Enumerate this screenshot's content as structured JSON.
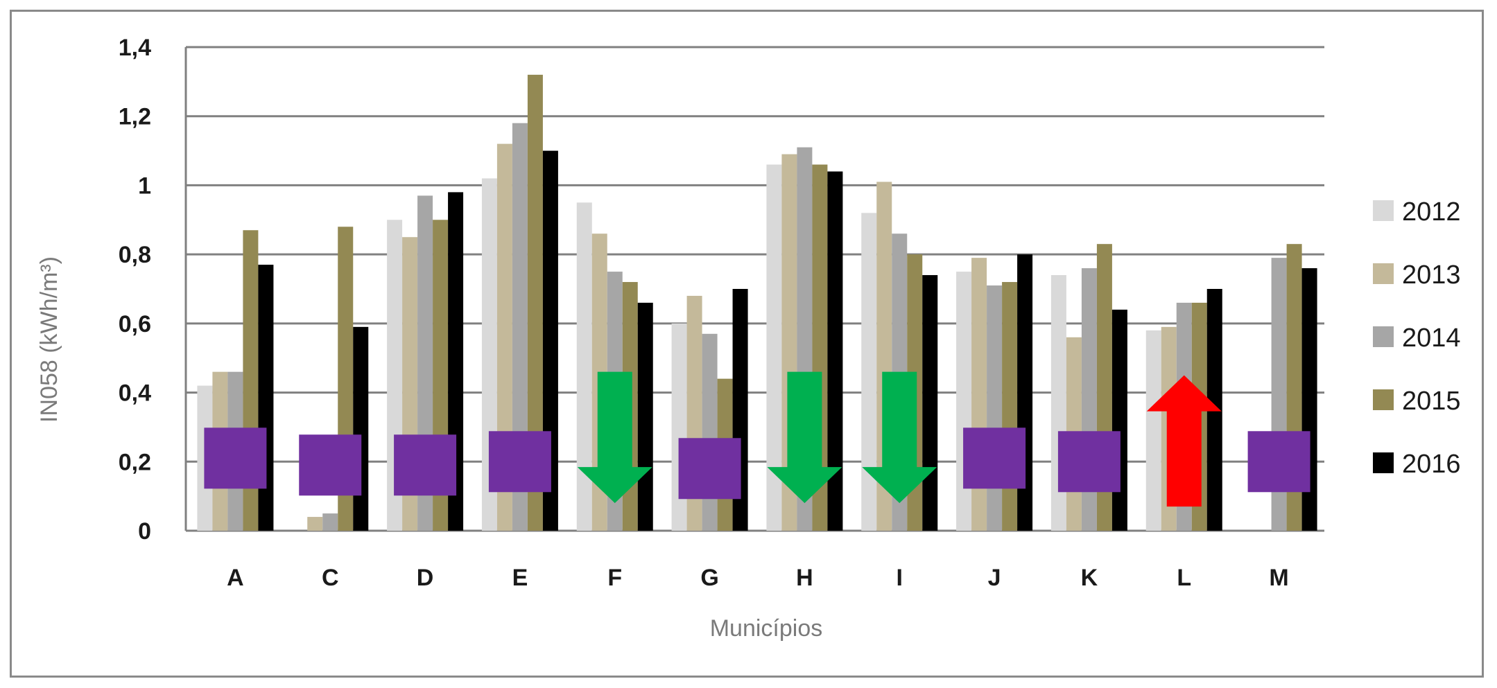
{
  "chart_data": {
    "type": "bar",
    "xlabel": "Municípios",
    "ylabel": "IN058 (kWh/m³)",
    "ylim": [
      0,
      1.4
    ],
    "yticks": [
      "0",
      "0,2",
      "0,4",
      "0,6",
      "0,8",
      "1",
      "1,2",
      "1,4"
    ],
    "grid": true,
    "legend_position": "right",
    "categories": [
      "A",
      "C",
      "D",
      "E",
      "F",
      "G",
      "H",
      "I",
      "J",
      "K",
      "L",
      "M"
    ],
    "series": [
      {
        "name": "2012",
        "color": "#d9d9d9",
        "values": [
          0.42,
          null,
          0.9,
          1.02,
          0.95,
          0.6,
          1.06,
          0.92,
          0.75,
          0.74,
          0.58,
          null
        ]
      },
      {
        "name": "2013",
        "color": "#c4b99a",
        "values": [
          0.46,
          0.04,
          0.85,
          1.12,
          0.86,
          0.68,
          1.09,
          1.01,
          0.79,
          0.56,
          0.59,
          null
        ]
      },
      {
        "name": "2014",
        "color": "#a6a6a6",
        "values": [
          0.46,
          0.05,
          0.97,
          1.18,
          0.75,
          0.57,
          1.11,
          0.86,
          0.71,
          0.76,
          0.66,
          0.79
        ]
      },
      {
        "name": "2015",
        "color": "#938953",
        "values": [
          0.87,
          0.88,
          0.9,
          1.32,
          0.72,
          0.44,
          1.06,
          0.8,
          0.72,
          0.83,
          0.66,
          0.83
        ]
      },
      {
        "name": "2016",
        "color": "#000000",
        "values": [
          0.77,
          0.59,
          0.98,
          1.1,
          0.66,
          0.7,
          1.04,
          0.74,
          0.8,
          0.64,
          0.7,
          0.76
        ]
      }
    ],
    "markers": [
      {
        "category": "A",
        "kind": "square",
        "color": "#7030a0",
        "center": 0.21
      },
      {
        "category": "C",
        "kind": "square",
        "color": "#7030a0",
        "center": 0.19
      },
      {
        "category": "D",
        "kind": "square",
        "color": "#7030a0",
        "center": 0.19
      },
      {
        "category": "E",
        "kind": "square",
        "color": "#7030a0",
        "center": 0.2
      },
      {
        "category": "F",
        "kind": "arrow-down",
        "color": "#00b050",
        "top": 0.46,
        "bottom": 0.08
      },
      {
        "category": "G",
        "kind": "square",
        "color": "#7030a0",
        "center": 0.18
      },
      {
        "category": "H",
        "kind": "arrow-down",
        "color": "#00b050",
        "top": 0.46,
        "bottom": 0.08
      },
      {
        "category": "I",
        "kind": "arrow-down",
        "color": "#00b050",
        "top": 0.46,
        "bottom": 0.08
      },
      {
        "category": "J",
        "kind": "square",
        "color": "#7030a0",
        "center": 0.21
      },
      {
        "category": "K",
        "kind": "square",
        "color": "#7030a0",
        "center": 0.2
      },
      {
        "category": "L",
        "kind": "arrow-up",
        "color": "#ff0000",
        "top": 0.45,
        "bottom": 0.07
      },
      {
        "category": "M",
        "kind": "square",
        "color": "#7030a0",
        "center": 0.2
      }
    ]
  }
}
